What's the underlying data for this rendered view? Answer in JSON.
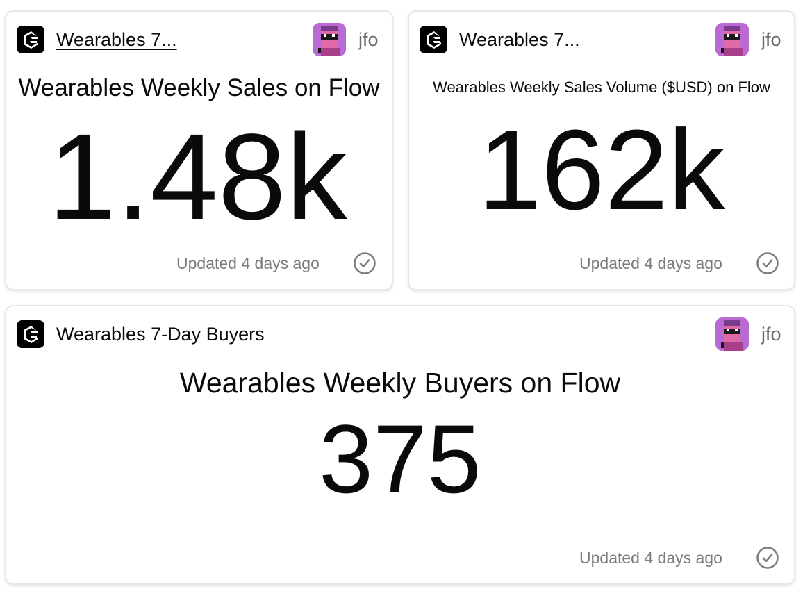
{
  "colors": {
    "card_border": "#e6e6e6",
    "text": "#0a0a0a",
    "muted": "#7b7b7b",
    "avatar_bg": "#b96ad3"
  },
  "cards": [
    {
      "query_title": "Wearables 7...",
      "owner": "jfo",
      "viz_title": "Wearables Weekly Sales on Flow",
      "value": "1.48k",
      "updated": "Updated 4 days ago",
      "status_icon": "check-circle-icon",
      "logo_icon": "flipside-logo-icon"
    },
    {
      "query_title": "Wearables 7...",
      "owner": "jfo",
      "viz_title": "Wearables Weekly Sales Volume ($USD) on Flow",
      "value": "162k",
      "updated": "Updated 4 days ago",
      "status_icon": "check-circle-icon",
      "logo_icon": "flipside-logo-icon"
    },
    {
      "query_title": "Wearables 7-Day Buyers",
      "owner": "jfo",
      "viz_title": "Wearables Weekly Buyers on Flow",
      "value": "375",
      "updated": "Updated 4 days ago",
      "status_icon": "check-circle-icon",
      "logo_icon": "flipside-logo-icon"
    }
  ]
}
